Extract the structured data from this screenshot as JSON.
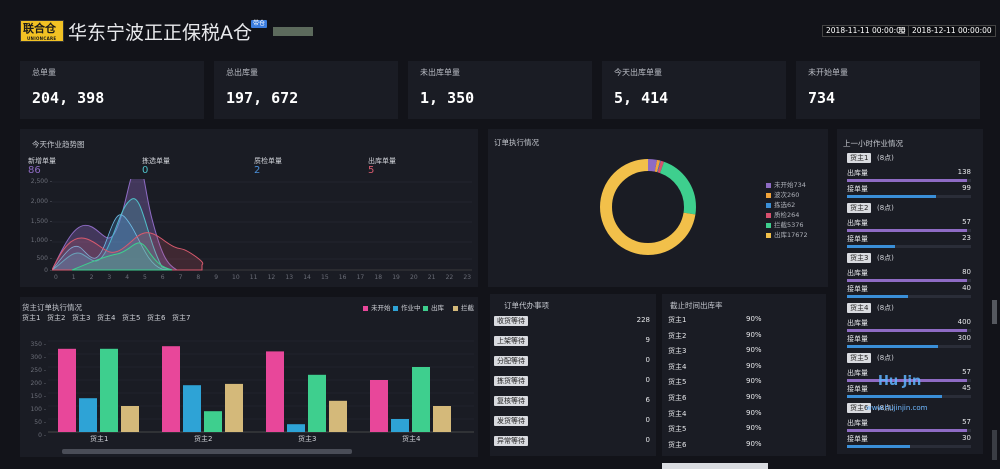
{
  "header": {
    "logo_text": "联合仓",
    "logo_sub": "UNIONCARE",
    "title": "华东宁波正正保税A仓",
    "tag": "带仓",
    "date_start": "2018-11-11 00:00:00",
    "date_sep": "至",
    "date_end": "2018-12-11 00:00:00"
  },
  "stats": [
    {
      "label": "总单量",
      "value": "204, 398"
    },
    {
      "label": "总出库量",
      "value": "197, 672"
    },
    {
      "label": "未出库单量",
      "value": "1, 350"
    },
    {
      "label": "今天出库单量",
      "value": "5, 414"
    },
    {
      "label": "未开始单量",
      "value": "734"
    }
  ],
  "trend": {
    "title": "今天作业趋势图",
    "metrics": [
      {
        "label": "新增单量",
        "value": "86",
        "color": "#8e6bc4"
      },
      {
        "label": "拣选单量",
        "value": "0",
        "color": "#4fc1c9"
      },
      {
        "label": "质检单量",
        "value": "2",
        "color": "#4a8fd8"
      },
      {
        "label": "出库单量",
        "value": "5",
        "color": "#d85a6e"
      }
    ],
    "y_ticks": [
      "2,500 -",
      "2,000 -",
      "1,500 -",
      "1,000 -",
      "500 -",
      "0 -"
    ],
    "x_ticks": [
      "0",
      "1",
      "2",
      "3",
      "4",
      "5",
      "6",
      "7",
      "8",
      "9",
      "10",
      "11",
      "12",
      "13",
      "14",
      "15",
      "16",
      "17",
      "18",
      "19",
      "20",
      "21",
      "22",
      "23"
    ]
  },
  "donut": {
    "title": "订单执行情况",
    "legend": [
      {
        "label": "未开始734",
        "color": "#8e6bc4",
        "value": 734
      },
      {
        "label": "波次260",
        "color": "#f2a33a",
        "value": 260
      },
      {
        "label": "拣选62",
        "color": "#3a8fd8",
        "value": 62
      },
      {
        "label": "质检264",
        "color": "#d8506e",
        "value": 264
      },
      {
        "label": "拦截5376",
        "color": "#3ecf8e",
        "value": 5376
      },
      {
        "label": "出库17672",
        "color": "#f2c04a",
        "value": 17672
      }
    ]
  },
  "hourly": {
    "title": "上一小时作业情况",
    "out_label": "出库量",
    "recv_label": "接单量",
    "items": [
      {
        "name": "货主1",
        "hours": "(8点)",
        "out": "138",
        "recv": "99",
        "out_ratio": 0.97,
        "recv_ratio": 0.72
      },
      {
        "name": "货主2",
        "hours": "(8点)",
        "out": "57",
        "recv": "23",
        "out_ratio": 0.97,
        "recv_ratio": 0.39
      },
      {
        "name": "货主3",
        "hours": "(8点)",
        "out": "80",
        "recv": "40",
        "out_ratio": 0.97,
        "recv_ratio": 0.49
      },
      {
        "name": "货主4",
        "hours": "(8点)",
        "out": "400",
        "recv": "300",
        "out_ratio": 0.97,
        "recv_ratio": 0.73
      },
      {
        "name": "货主5",
        "hours": "(8点)",
        "out": "57",
        "recv": "45",
        "out_ratio": 0.97,
        "recv_ratio": 0.77
      },
      {
        "name": "货主6",
        "hours": "(8点)",
        "out": "57",
        "recv": "30",
        "out_ratio": 0.97,
        "recv_ratio": 0.51
      }
    ]
  },
  "owner_chart": {
    "title": "货主订单执行情况",
    "tabs": [
      "货主1",
      "货主2",
      "货主3",
      "货主4",
      "货主5",
      "货主6",
      "货主7"
    ],
    "legend": [
      {
        "label": "未开始",
        "color": "#e8479a"
      },
      {
        "label": "作业中",
        "color": "#2ea3d6"
      },
      {
        "label": "出库",
        "color": "#3ecf8e"
      },
      {
        "label": "拦截",
        "color": "#d4b97a"
      }
    ],
    "y_ticks": [
      "350 -",
      "300 -",
      "250 -",
      "200 -",
      "150 -",
      "100 -",
      "50 -",
      "0 -"
    ]
  },
  "chart_data": {
    "type": "bar",
    "categories": [
      "货主1",
      "货主2",
      "货主3",
      "货主4"
    ],
    "series": [
      {
        "name": "未开始",
        "values": [
          320,
          330,
          310,
          200
        ]
      },
      {
        "name": "作业中",
        "values": [
          130,
          180,
          30,
          50
        ]
      },
      {
        "name": "出库",
        "values": [
          320,
          80,
          220,
          250
        ]
      },
      {
        "name": "拦截",
        "values": [
          100,
          185,
          120,
          100
        ]
      }
    ],
    "ylim": [
      0,
      350
    ],
    "legend_position": "top-right"
  },
  "todo": {
    "title": "订单代办事项",
    "items": [
      {
        "label": "收货等待",
        "count": "228"
      },
      {
        "label": "上架等待",
        "count": "9"
      },
      {
        "label": "分配等待",
        "count": "0"
      },
      {
        "label": "拣货等待",
        "count": "0"
      },
      {
        "label": "复核等待",
        "count": "6"
      },
      {
        "label": "发货等待",
        "count": "0"
      },
      {
        "label": "异常等待",
        "count": "0"
      }
    ]
  },
  "cutoff": {
    "title": "截止时间出库率",
    "items": [
      {
        "name": "货主1",
        "pct": "90%"
      },
      {
        "name": "货主2",
        "pct": "90%"
      },
      {
        "name": "货主3",
        "pct": "90%"
      },
      {
        "name": "货主4",
        "pct": "90%"
      },
      {
        "name": "货主5",
        "pct": "90%"
      },
      {
        "name": "货主6",
        "pct": "90%"
      },
      {
        "name": "货主4",
        "pct": "90%"
      },
      {
        "name": "货主5",
        "pct": "90%"
      },
      {
        "name": "货主6",
        "pct": "90%"
      }
    ]
  },
  "watermark": {
    "main": "Hu Jin",
    "sub": "www.hujinjin.com"
  }
}
